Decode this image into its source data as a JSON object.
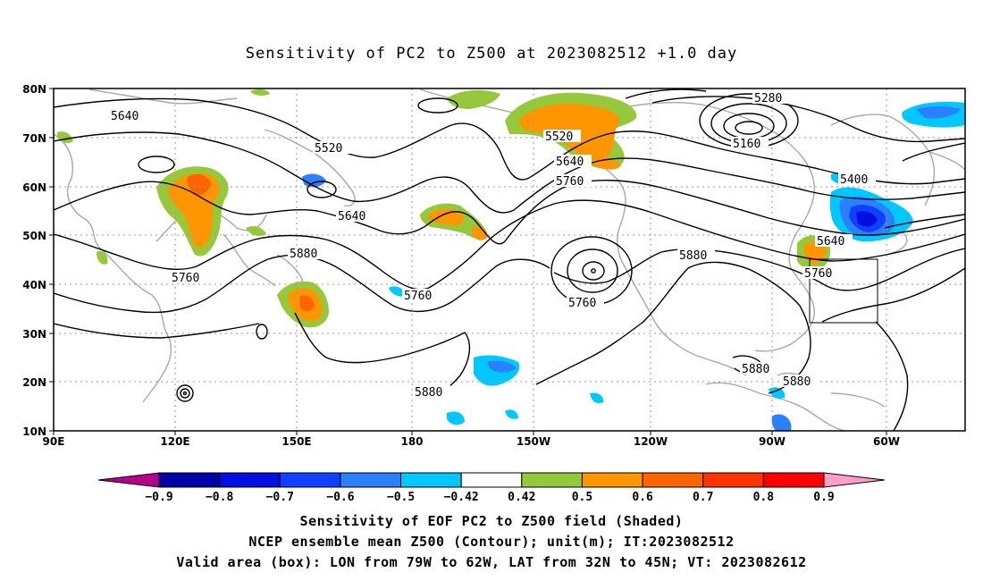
{
  "title": "Sensitivity of PC2 to Z500 at 2023082512 +1.0 day",
  "lat_labels": [
    "80N",
    "70N",
    "60N",
    "50N",
    "40N",
    "30N",
    "20N",
    "10N"
  ],
  "lon_labels": [
    "90E",
    "120E",
    "150E",
    "180",
    "150W",
    "120W",
    "90W",
    "60W"
  ],
  "contour_labels": [
    "5640",
    "5520",
    "5640",
    "5760",
    "5880",
    "5760",
    "5520",
    "5640",
    "5760",
    "5760",
    "5880",
    "5280",
    "5160",
    "5400",
    "5640",
    "5760",
    "5880",
    "5880",
    "5880"
  ],
  "colorbar": {
    "labels": [
      "−0.9",
      "−0.8",
      "−0.7",
      "−0.6",
      "−0.5",
      "−0.42",
      "0.42",
      "0.5",
      "0.6",
      "0.7",
      "0.8",
      "0.9"
    ],
    "colors": [
      "#b8008c",
      "#0000a8",
      "#0010e0",
      "#1040ff",
      "#2a80ff",
      "#00c8ff",
      "#ffffff",
      "#96c83c",
      "#ff9600",
      "#ff6400",
      "#ff3200",
      "#ff0000",
      "#ff9ec8"
    ]
  },
  "caption": {
    "line1": "Sensitivity of EOF PC2 to Z500 field (Shaded)",
    "line2": "NCEP ensemble mean Z500 (Contour); unit(m); IT:2023082512",
    "line3": "Valid area (box): LON from 79W to 62W, LAT from 32N to 45N; VT: 2023082612"
  }
}
